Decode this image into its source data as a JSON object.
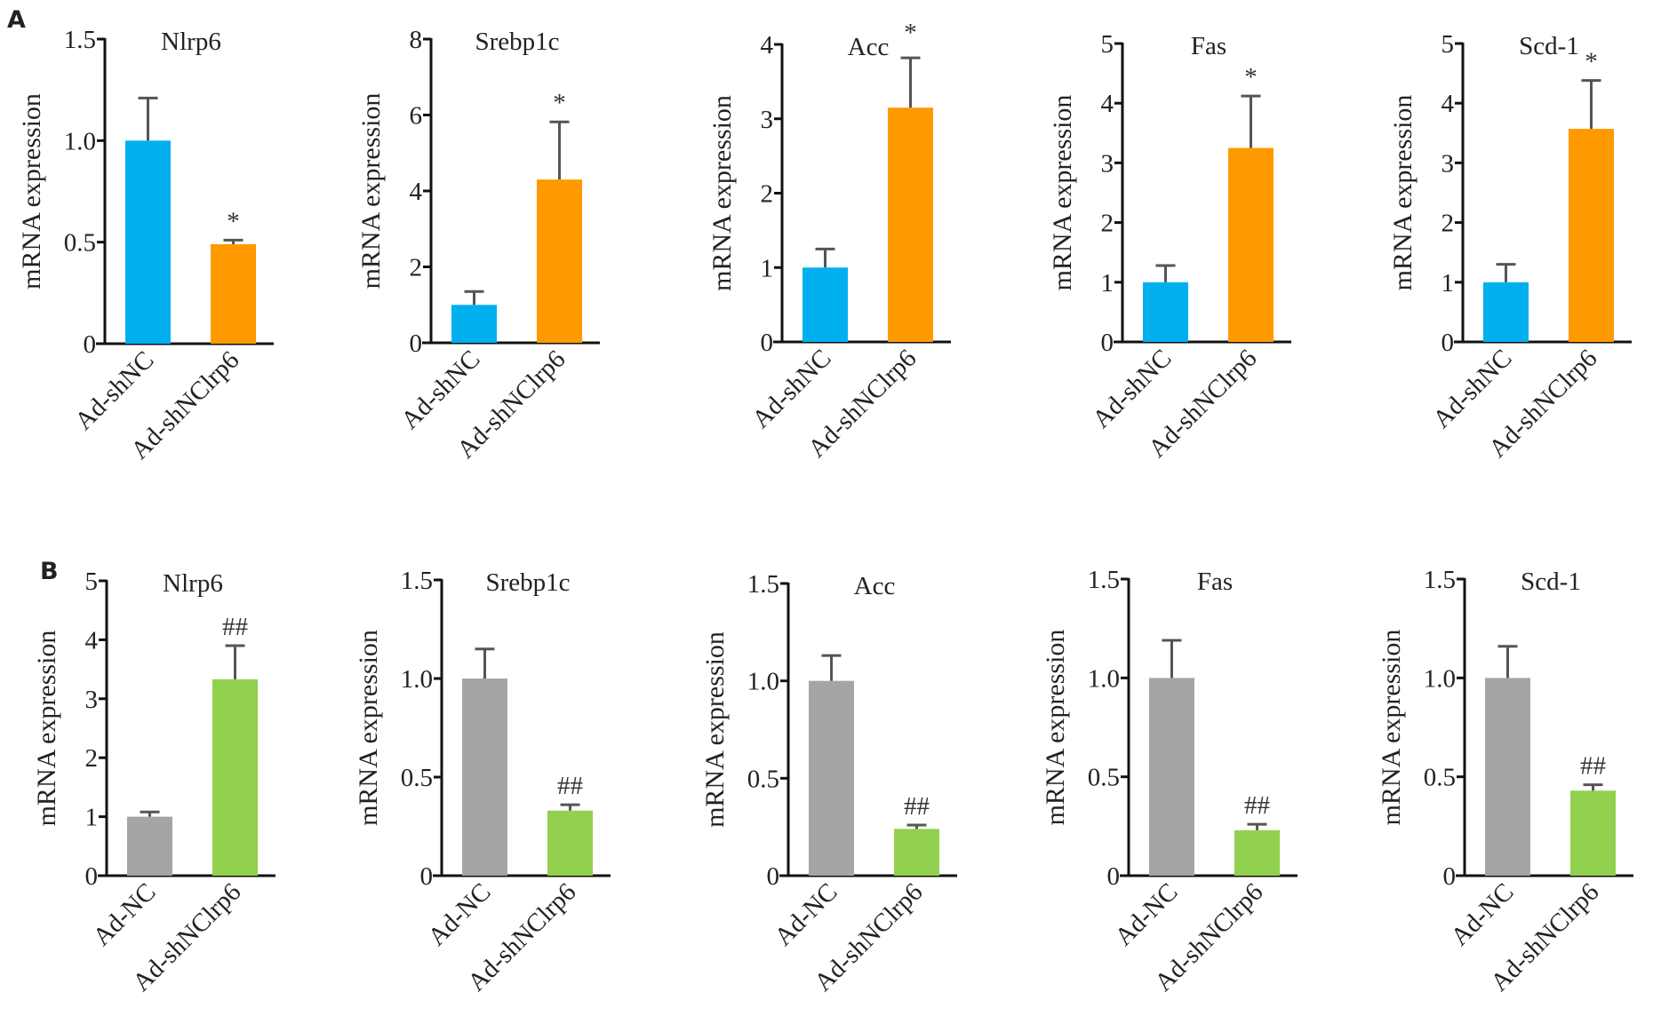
{
  "figure": {
    "panels": [
      {
        "letter": "A"
      },
      {
        "letter": "B"
      }
    ]
  },
  "chart_data": [
    {
      "type": "bar",
      "panel": "A",
      "title": "Nlrp6",
      "ylabel": "mRNA expression",
      "xlabel": "",
      "categories": [
        "Ad-shNC",
        "Ad-shNClrp6"
      ],
      "values": [
        1.0,
        0.49
      ],
      "error_upper": [
        0.21,
        0.02
      ],
      "significance": [
        "",
        "*"
      ],
      "colors": [
        "#00b0ee",
        "#ff9900"
      ],
      "ylim": [
        0,
        1.5
      ],
      "yticks": [
        0,
        0.5,
        1.0,
        1.5
      ],
      "ytick_labels": [
        "0",
        "0.5",
        "1.0",
        "1.5"
      ],
      "grid": false
    },
    {
      "type": "bar",
      "panel": "A",
      "title": "Srebp1c",
      "ylabel": "mRNA expression",
      "xlabel": "",
      "categories": [
        "Ad-shNC",
        "Ad-shNClrp6"
      ],
      "values": [
        1.0,
        4.3
      ],
      "error_upper": [
        0.35,
        1.52
      ],
      "significance": [
        "",
        "*"
      ],
      "colors": [
        "#00b0ee",
        "#ff9900"
      ],
      "ylim": [
        0,
        8
      ],
      "yticks": [
        0,
        2,
        4,
        6,
        8
      ],
      "ytick_labels": [
        "0",
        "2",
        "4",
        "6",
        "8"
      ],
      "grid": false
    },
    {
      "type": "bar",
      "panel": "A",
      "title": "Acc",
      "ylabel": "mRNA expression",
      "xlabel": "",
      "categories": [
        "Ad-shNC",
        "Ad-shNClrp6"
      ],
      "values": [
        1.0,
        3.15
      ],
      "error_upper": [
        0.25,
        0.67
      ],
      "significance": [
        "",
        "*"
      ],
      "colors": [
        "#00b0ee",
        "#ff9900"
      ],
      "ylim": [
        0,
        4
      ],
      "yticks": [
        0,
        1,
        2,
        3,
        4
      ],
      "ytick_labels": [
        "0",
        "1",
        "2",
        "3",
        "4"
      ],
      "grid": false
    },
    {
      "type": "bar",
      "panel": "A",
      "title": "Fas",
      "ylabel": "mRNA expression",
      "xlabel": "",
      "categories": [
        "Ad-shNC",
        "Ad-shNClrp6"
      ],
      "values": [
        1.0,
        3.25
      ],
      "error_upper": [
        0.28,
        0.87
      ],
      "significance": [
        "",
        "*"
      ],
      "colors": [
        "#00b0ee",
        "#ff9900"
      ],
      "ylim": [
        0,
        5
      ],
      "yticks": [
        0,
        1,
        2,
        3,
        4,
        5
      ],
      "ytick_labels": [
        "0",
        "1",
        "2",
        "3",
        "4",
        "5"
      ],
      "grid": false
    },
    {
      "type": "bar",
      "panel": "A",
      "title": "Scd-1",
      "ylabel": "mRNA expression",
      "xlabel": "",
      "categories": [
        "Ad-shNC",
        "Ad-shNClrp6"
      ],
      "values": [
        1.0,
        3.57
      ],
      "error_upper": [
        0.3,
        0.81
      ],
      "significance": [
        "",
        "*"
      ],
      "colors": [
        "#00b0ee",
        "#ff9900"
      ],
      "ylim": [
        0,
        5
      ],
      "yticks": [
        0,
        1,
        2,
        3,
        4,
        5
      ],
      "ytick_labels": [
        "0",
        "1",
        "2",
        "3",
        "4",
        "5"
      ],
      "grid": false
    },
    {
      "type": "bar",
      "panel": "B",
      "title": "Nlrp6",
      "ylabel": "mRNA expression",
      "xlabel": "",
      "categories": [
        "Ad-NC",
        "Ad-shNClrp6"
      ],
      "values": [
        1.0,
        3.33
      ],
      "error_upper": [
        0.08,
        0.57
      ],
      "significance": [
        "",
        "##"
      ],
      "colors": [
        "#a5a5a5",
        "#92d050"
      ],
      "ylim": [
        0,
        5
      ],
      "yticks": [
        0,
        1,
        2,
        3,
        4,
        5
      ],
      "ytick_labels": [
        "0",
        "1",
        "2",
        "3",
        "4",
        "5"
      ],
      "grid": false
    },
    {
      "type": "bar",
      "panel": "B",
      "title": "Srebp1c",
      "ylabel": "mRNA expression",
      "xlabel": "",
      "categories": [
        "Ad-NC",
        "Ad-shNClrp6"
      ],
      "values": [
        1.0,
        0.33
      ],
      "error_upper": [
        0.15,
        0.03
      ],
      "significance": [
        "",
        "##"
      ],
      "colors": [
        "#a5a5a5",
        "#92d050"
      ],
      "ylim": [
        0,
        1.5
      ],
      "yticks": [
        0,
        0.5,
        1.0,
        1.5
      ],
      "ytick_labels": [
        "0",
        "0.5",
        "1.0",
        "1.5"
      ],
      "grid": false
    },
    {
      "type": "bar",
      "panel": "B",
      "title": "Acc",
      "ylabel": "mRNA expression",
      "xlabel": "",
      "categories": [
        "Ad-NC",
        "Ad-shNClrp6"
      ],
      "values": [
        1.0,
        0.24
      ],
      "error_upper": [
        0.13,
        0.02
      ],
      "significance": [
        "",
        "##"
      ],
      "colors": [
        "#a5a5a5",
        "#92d050"
      ],
      "ylim": [
        0,
        1.5
      ],
      "yticks": [
        0,
        0.5,
        1.0,
        1.5
      ],
      "ytick_labels": [
        "0",
        "0.5",
        "1.0",
        "1.5"
      ],
      "grid": false
    },
    {
      "type": "bar",
      "panel": "B",
      "title": "Fas",
      "ylabel": "mRNA expression",
      "xlabel": "",
      "categories": [
        "Ad-NC",
        "Ad-shNClrp6"
      ],
      "values": [
        1.0,
        0.23
      ],
      "error_upper": [
        0.19,
        0.03
      ],
      "significance": [
        "",
        "##"
      ],
      "colors": [
        "#a5a5a5",
        "#92d050"
      ],
      "ylim": [
        0,
        1.5
      ],
      "yticks": [
        0,
        0.5,
        1.0,
        1.5
      ],
      "ytick_labels": [
        "0",
        "0.5",
        "1.0",
        "1.5"
      ],
      "grid": false
    },
    {
      "type": "bar",
      "panel": "B",
      "title": "Scd-1",
      "ylabel": "mRNA expression",
      "xlabel": "",
      "categories": [
        "Ad-NC",
        "Ad-shNClrp6"
      ],
      "values": [
        1.0,
        0.43
      ],
      "error_upper": [
        0.16,
        0.03
      ],
      "significance": [
        "",
        "##"
      ],
      "colors": [
        "#a5a5a5",
        "#92d050"
      ],
      "ylim": [
        0,
        1.5
      ],
      "yticks": [
        0,
        0.5,
        1.0,
        1.5
      ],
      "ytick_labels": [
        "0",
        "0.5",
        "1.0",
        "1.5"
      ],
      "grid": false
    }
  ]
}
